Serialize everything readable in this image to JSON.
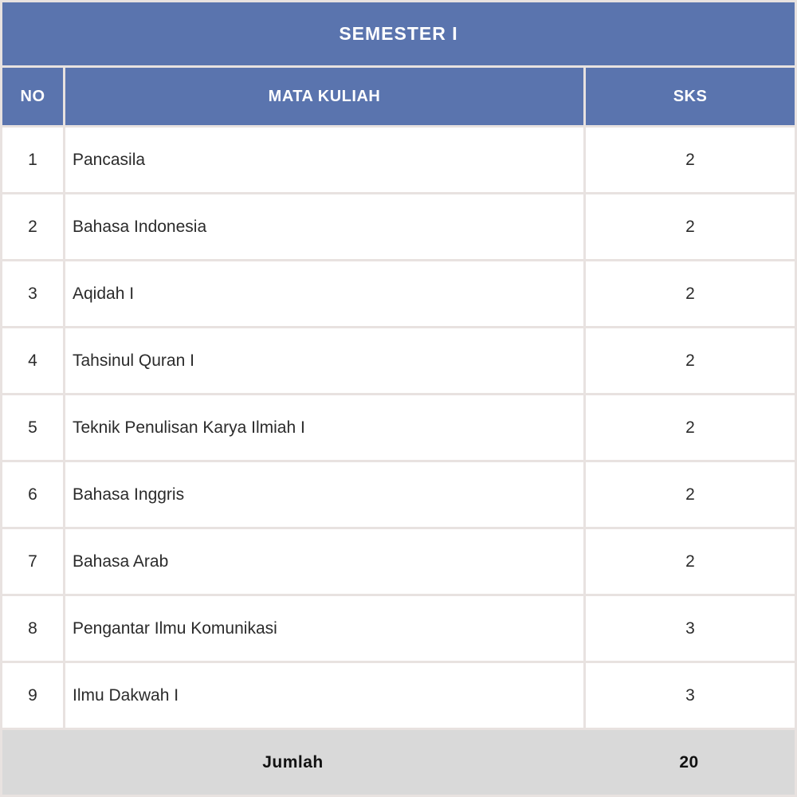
{
  "table": {
    "title": "SEMESTER I",
    "columns": [
      "NO",
      "MATA KULIAH",
      "SKS"
    ],
    "rows": [
      {
        "no": "1",
        "course": "Pancasila",
        "sks": "2"
      },
      {
        "no": "2",
        "course": "Bahasa Indonesia",
        "sks": "2"
      },
      {
        "no": "3",
        "course": "Aqidah I",
        "sks": "2"
      },
      {
        "no": "4",
        "course": "Tahsinul Quran I",
        "sks": "2"
      },
      {
        "no": "5",
        "course": "Teknik Penulisan Karya Ilmiah I",
        "sks": "2"
      },
      {
        "no": "6",
        "course": "Bahasa Inggris",
        "sks": "2"
      },
      {
        "no": "7",
        "course": "Bahasa Arab",
        "sks": "2"
      },
      {
        "no": "8",
        "course": "Pengantar Ilmu Komunikasi",
        "sks": "3"
      },
      {
        "no": "9",
        "course": "Ilmu Dakwah I",
        "sks": "3"
      }
    ],
    "footer": {
      "label": "Jumlah",
      "total": "20"
    }
  },
  "colors": {
    "header_blue": "#5a74ae",
    "border_light": "#e8e2e0",
    "footer_gray": "#d9d9d9",
    "body_text": "#2b2b2b",
    "header_text": "#ffffff"
  }
}
